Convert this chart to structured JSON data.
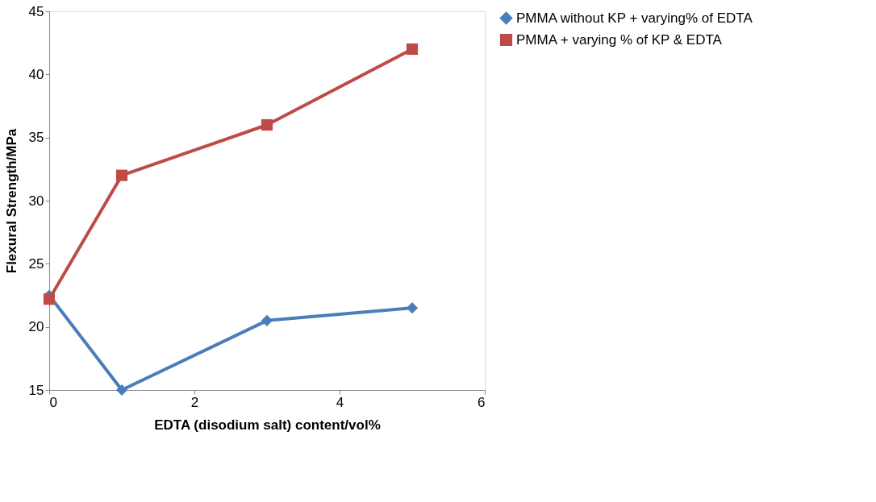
{
  "chart_data": {
    "type": "line",
    "xlabel": "EDTA (disodium salt) content/vol%",
    "ylabel": "Flexural Strength/MPa",
    "xlim": [
      0,
      6
    ],
    "xticks": [
      0,
      2,
      4,
      6
    ],
    "ylim": [
      15,
      45
    ],
    "yticks": [
      15,
      20,
      25,
      30,
      35,
      40,
      45
    ],
    "grid": false,
    "legend": "top right",
    "line_style": "solid",
    "series": [
      {
        "name": "PMMA without KP + varying% of EDTA",
        "color": "#4a7ebb",
        "marker": "diamond",
        "x": [
          0,
          1,
          3,
          5
        ],
        "values": [
          22.5,
          15,
          20.5,
          21.5
        ]
      },
      {
        "name": "PMMA + varying % of KP & EDTA",
        "color": "#be4b48",
        "marker": "square",
        "x": [
          0,
          1,
          3,
          5
        ],
        "values": [
          22.2,
          32,
          36,
          42
        ]
      }
    ]
  }
}
